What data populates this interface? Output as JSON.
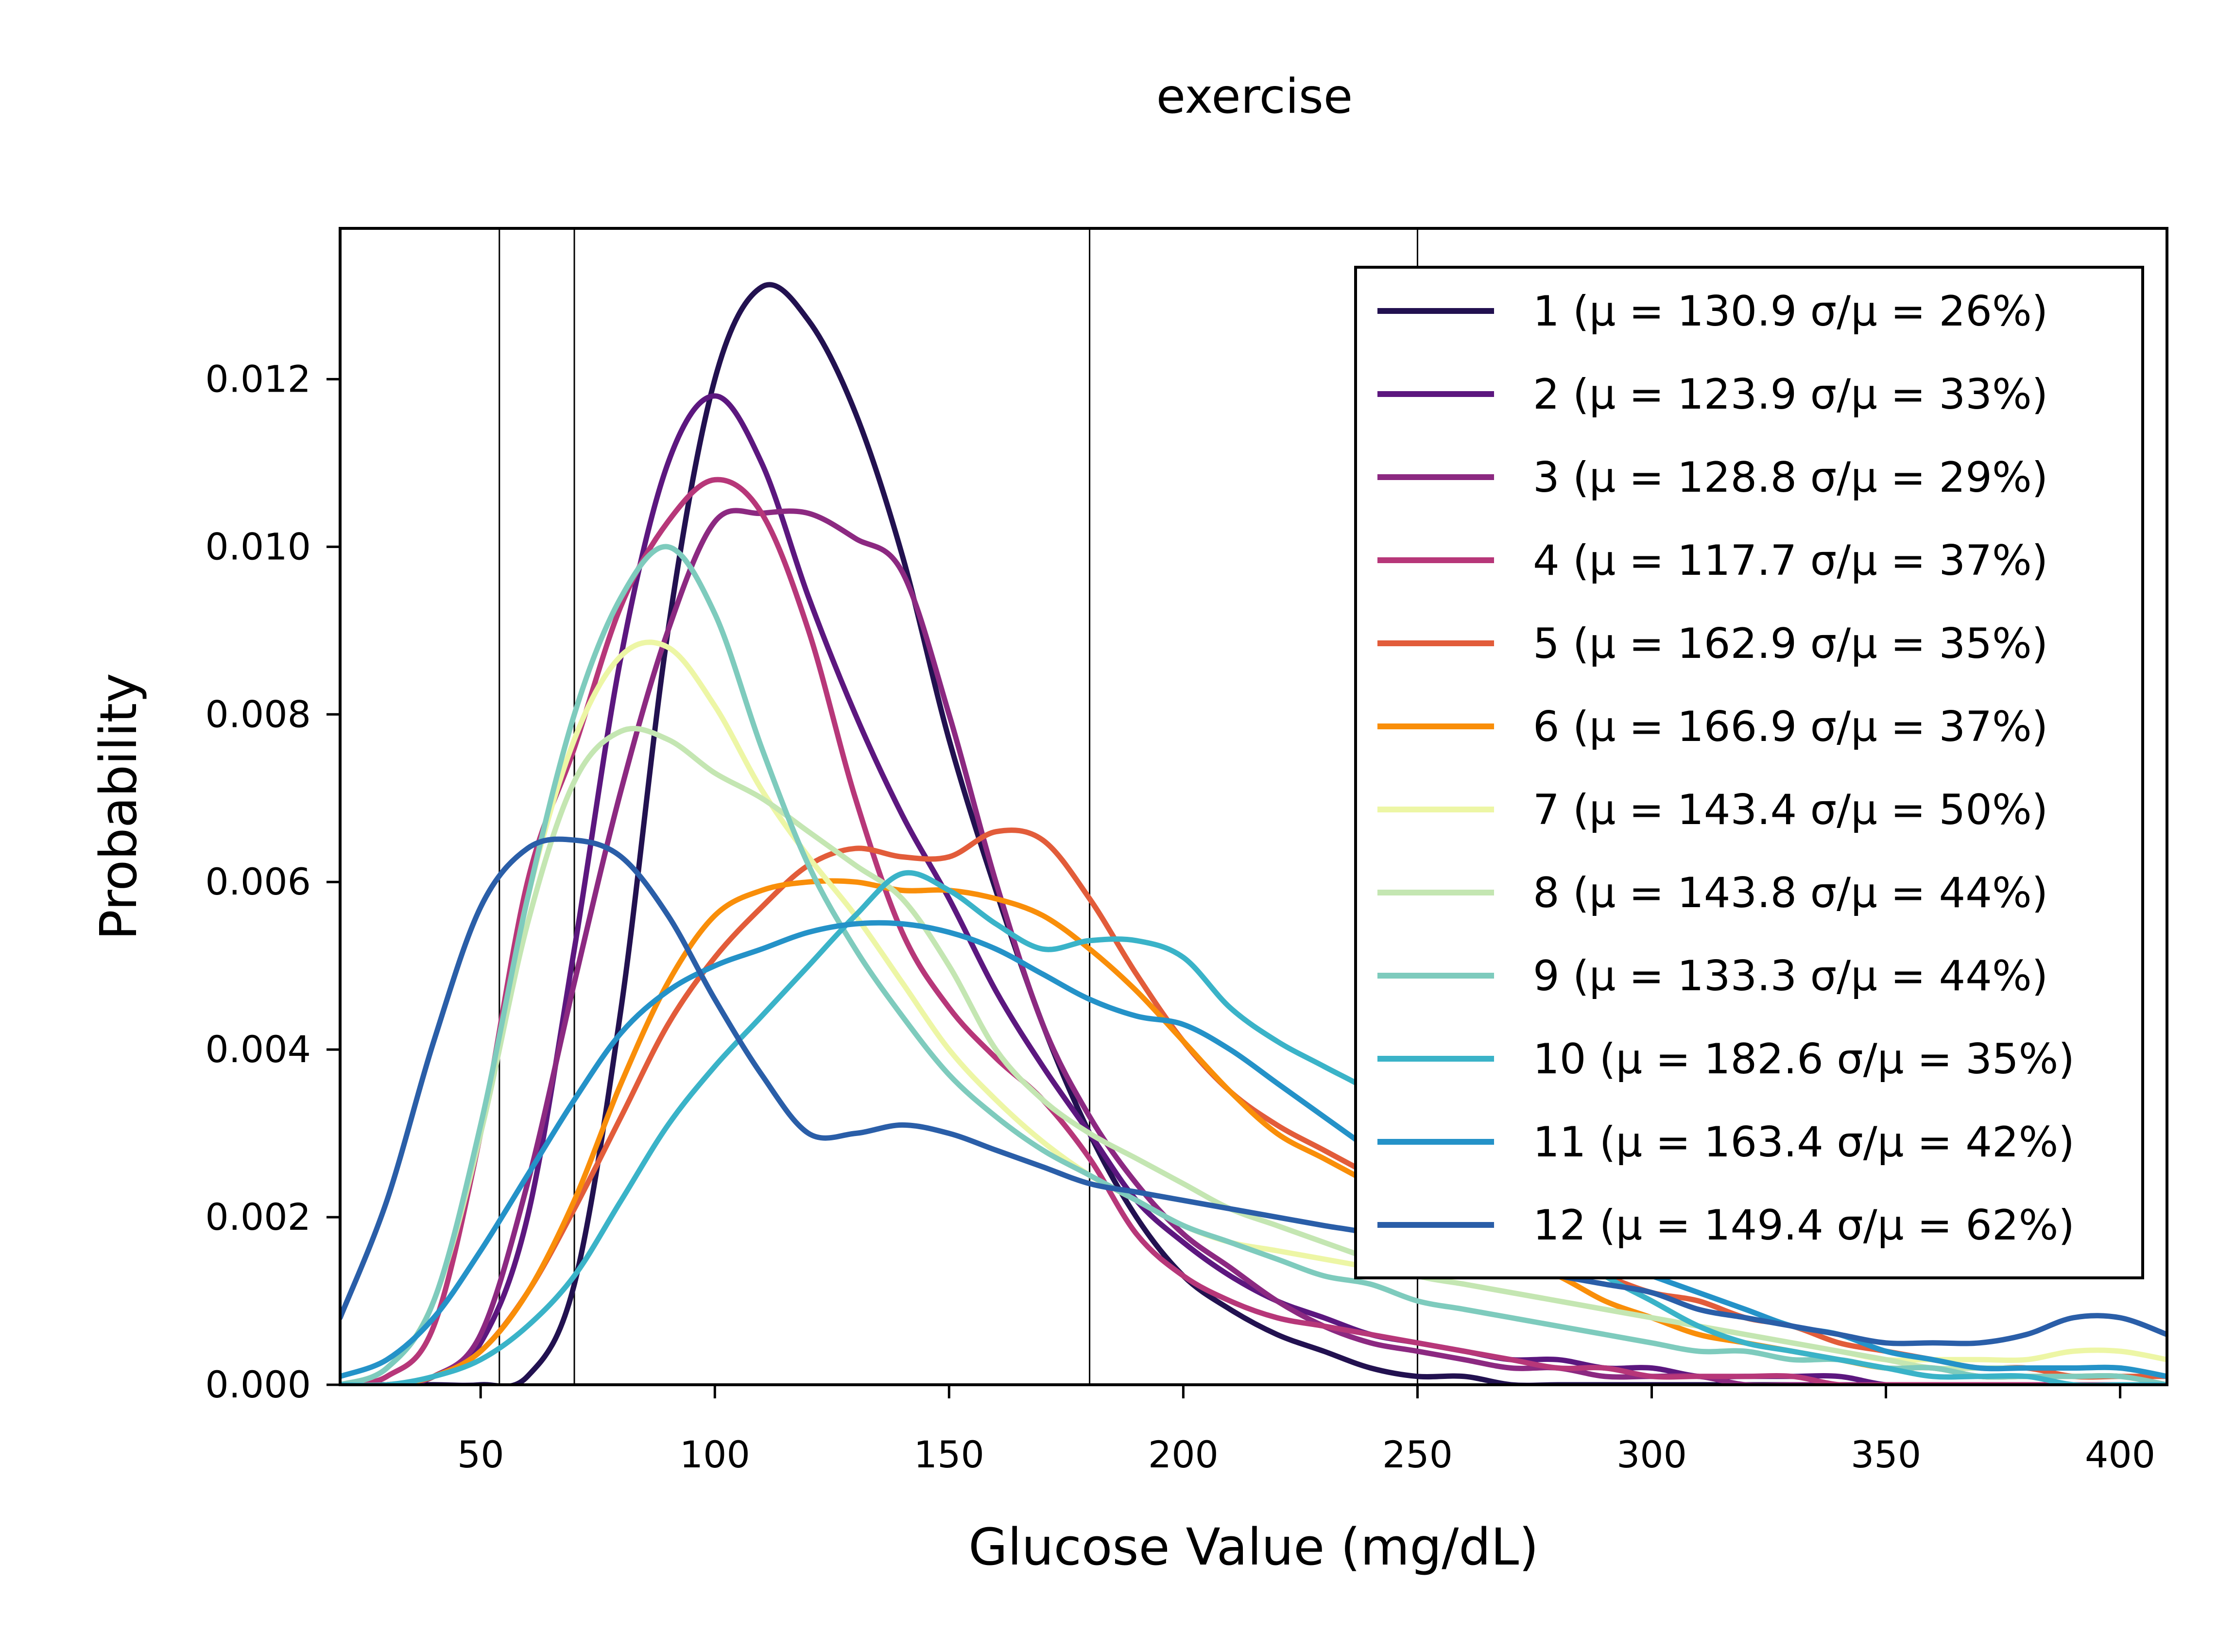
{
  "chart_data": {
    "type": "line",
    "title": "exercise",
    "xlabel": "Glucose Value (mg/dL)",
    "ylabel": "Probability",
    "xlim": [
      20,
      410
    ],
    "ylim": [
      0,
      0.0138
    ],
    "xticks": [
      50,
      100,
      150,
      200,
      250,
      300,
      350,
      400
    ],
    "xtick_labels": [
      "50",
      "100",
      "150",
      "200",
      "250",
      "300",
      "350",
      "400"
    ],
    "yticks": [
      0,
      0.002,
      0.004,
      0.006,
      0.008,
      0.01,
      0.012
    ],
    "ytick_labels": [
      "0.000",
      "0.002",
      "0.004",
      "0.006",
      "0.008",
      "0.010",
      "0.012"
    ],
    "reference_lines_x": [
      54,
      70,
      180,
      250
    ],
    "legend_position": "upper right",
    "x": [
      20,
      30,
      40,
      50,
      60,
      70,
      80,
      90,
      100,
      110,
      120,
      130,
      140,
      150,
      160,
      170,
      180,
      190,
      200,
      210,
      220,
      230,
      240,
      250,
      260,
      270,
      280,
      290,
      300,
      310,
      320,
      330,
      340,
      350,
      360,
      370,
      380,
      390,
      400,
      410
    ],
    "series": [
      {
        "name": "1",
        "label": "1 (μ = 130.9 σ/μ = 26%)",
        "color": "#221150",
        "values": [
          0,
          0,
          0,
          0,
          0.0001,
          0.0012,
          0.0045,
          0.009,
          0.012,
          0.0131,
          0.0127,
          0.0116,
          0.0099,
          0.0077,
          0.0059,
          0.0043,
          0.003,
          0.002,
          0.0013,
          0.0009,
          0.0006,
          0.0004,
          0.0002,
          0.0001,
          0.0001,
          0,
          0,
          0,
          0,
          0,
          0,
          0,
          0,
          0,
          0,
          0,
          0,
          0,
          0,
          0
        ]
      },
      {
        "name": "2",
        "label": "2 (μ = 123.9 σ/μ = 33%)",
        "color": "#5c177f",
        "values": [
          0,
          0,
          0.0001,
          0.0005,
          0.002,
          0.0052,
          0.0087,
          0.011,
          0.0118,
          0.011,
          0.0094,
          0.008,
          0.0068,
          0.0058,
          0.0047,
          0.0038,
          0.003,
          0.0022,
          0.0017,
          0.0013,
          0.001,
          0.0008,
          0.0006,
          0.0005,
          0.0004,
          0.0003,
          0.0003,
          0.0002,
          0.0002,
          0.0001,
          0.0001,
          0.0001,
          0.0001,
          0,
          0,
          0,
          0,
          0,
          0,
          0
        ]
      },
      {
        "name": "3",
        "label": "3 (μ = 128.8 σ/μ = 29%)",
        "color": "#8c2981",
        "values": [
          0,
          0,
          0.0001,
          0.0006,
          0.0024,
          0.0048,
          0.0071,
          0.009,
          0.0103,
          0.0104,
          0.0104,
          0.0101,
          0.0097,
          0.008,
          0.006,
          0.0043,
          0.0032,
          0.0024,
          0.0018,
          0.0014,
          0.001,
          0.0007,
          0.0005,
          0.0004,
          0.0003,
          0.0002,
          0.0002,
          0.0001,
          0.0001,
          0.0001,
          0,
          0,
          0,
          0,
          0,
          0,
          0,
          0,
          0,
          0
        ]
      },
      {
        "name": "4",
        "label": "4 (μ = 117.7 σ/μ = 37%)",
        "color": "#b73779",
        "values": [
          0,
          0.0001,
          0.0007,
          0.003,
          0.006,
          0.0076,
          0.0093,
          0.0103,
          0.0108,
          0.0104,
          0.009,
          0.007,
          0.0054,
          0.0045,
          0.0039,
          0.0034,
          0.0027,
          0.0018,
          0.0013,
          0.001,
          0.0008,
          0.0007,
          0.0006,
          0.0005,
          0.0004,
          0.0003,
          0.0002,
          0.0002,
          0.0001,
          0.0001,
          0.0001,
          0.0001,
          0,
          0,
          0,
          0,
          0,
          0,
          0,
          0
        ]
      },
      {
        "name": "5",
        "label": "5 (μ = 162.9 σ/μ = 35%)",
        "color": "#e25c3a",
        "values": [
          0,
          0,
          0.0001,
          0.0004,
          0.0011,
          0.0021,
          0.0032,
          0.0043,
          0.0051,
          0.0057,
          0.0062,
          0.0064,
          0.0063,
          0.0063,
          0.0066,
          0.0065,
          0.0058,
          0.0049,
          0.0041,
          0.0035,
          0.0031,
          0.0028,
          0.0025,
          0.0022,
          0.0019,
          0.0017,
          0.0015,
          0.0013,
          0.0011,
          0.001,
          0.0008,
          0.0007,
          0.0005,
          0.0004,
          0.0003,
          0.0002,
          0.0002,
          0.0001,
          0.0001,
          0.0001
        ]
      },
      {
        "name": "6",
        "label": "6 (μ = 166.9 σ/μ = 37%)",
        "color": "#f98e09",
        "values": [
          0,
          0,
          0.0001,
          0.0004,
          0.0011,
          0.0022,
          0.0036,
          0.0048,
          0.0056,
          0.0059,
          0.006,
          0.006,
          0.0059,
          0.0059,
          0.0058,
          0.0056,
          0.0052,
          0.0047,
          0.0041,
          0.0035,
          0.003,
          0.0027,
          0.0024,
          0.0021,
          0.0018,
          0.0015,
          0.0013,
          0.001,
          0.0008,
          0.0006,
          0.0005,
          0.0004,
          0.0003,
          0.0002,
          0.0002,
          0.0001,
          0.0001,
          0.0001,
          0.0001,
          0
        ]
      },
      {
        "name": "7",
        "label": "7 (μ = 143.4 σ/μ = 50%)",
        "color": "#edf6a5",
        "values": [
          0,
          0.0002,
          0.001,
          0.003,
          0.0058,
          0.0077,
          0.0087,
          0.0088,
          0.0081,
          0.0071,
          0.0063,
          0.0056,
          0.0048,
          0.004,
          0.0034,
          0.0029,
          0.0025,
          0.0022,
          0.0019,
          0.0017,
          0.0016,
          0.0015,
          0.0014,
          0.0013,
          0.0012,
          0.0011,
          0.001,
          0.0009,
          0.0008,
          0.0007,
          0.0006,
          0.0005,
          0.0004,
          0.0003,
          0.0003,
          0.0003,
          0.0003,
          0.0004,
          0.0004,
          0.0003
        ]
      },
      {
        "name": "8",
        "label": "8 (μ = 143.8 σ/μ = 44%)",
        "color": "#c4e6b2",
        "values": [
          0,
          0.0002,
          0.001,
          0.003,
          0.0055,
          0.0072,
          0.0078,
          0.0077,
          0.0073,
          0.007,
          0.0066,
          0.0062,
          0.0058,
          0.005,
          0.004,
          0.0034,
          0.003,
          0.0027,
          0.0024,
          0.0021,
          0.0019,
          0.0017,
          0.0015,
          0.0013,
          0.0012,
          0.0011,
          0.001,
          0.0009,
          0.0008,
          0.0007,
          0.0006,
          0.0005,
          0.0004,
          0.0003,
          0.0002,
          0.0002,
          0.0002,
          0.0002,
          0.0002,
          0.0001
        ]
      },
      {
        "name": "9",
        "label": "9 (μ = 133.3 σ/μ = 44%)",
        "color": "#7ecbbd",
        "values": [
          0,
          0.0002,
          0.001,
          0.0031,
          0.0058,
          0.008,
          0.0094,
          0.01,
          0.0092,
          0.0076,
          0.0062,
          0.0052,
          0.0044,
          0.0037,
          0.0032,
          0.0028,
          0.0025,
          0.0022,
          0.0019,
          0.0017,
          0.0015,
          0.0013,
          0.0012,
          0.001,
          0.0009,
          0.0008,
          0.0007,
          0.0006,
          0.0005,
          0.0004,
          0.0004,
          0.0003,
          0.0003,
          0.0002,
          0.0002,
          0.0001,
          0.0001,
          0.0001,
          0.0001,
          0
        ]
      },
      {
        "name": "10",
        "label": "10 (μ = 182.6 σ/μ = 35%)",
        "color": "#3ab3c8",
        "values": [
          0,
          0,
          0.0001,
          0.0003,
          0.0007,
          0.0013,
          0.0022,
          0.0031,
          0.0038,
          0.0044,
          0.005,
          0.0056,
          0.0061,
          0.0059,
          0.0055,
          0.0052,
          0.0053,
          0.0053,
          0.0051,
          0.0045,
          0.0041,
          0.0038,
          0.0035,
          0.0031,
          0.0026,
          0.0021,
          0.0017,
          0.0013,
          0.001,
          0.0007,
          0.0005,
          0.0004,
          0.0003,
          0.0002,
          0.0001,
          0.0001,
          0.0001,
          0,
          0,
          0
        ]
      },
      {
        "name": "11",
        "label": "11 (μ = 163.4 σ/μ = 42%)",
        "color": "#2492c8",
        "values": [
          0.0001,
          0.0003,
          0.0008,
          0.0016,
          0.0025,
          0.0034,
          0.0042,
          0.0047,
          0.005,
          0.0052,
          0.0054,
          0.0055,
          0.0055,
          0.0054,
          0.0052,
          0.0049,
          0.0046,
          0.0044,
          0.0043,
          0.004,
          0.0036,
          0.0032,
          0.0028,
          0.0024,
          0.0021,
          0.0019,
          0.0017,
          0.0015,
          0.0013,
          0.0011,
          0.0009,
          0.0007,
          0.0006,
          0.0004,
          0.0003,
          0.0002,
          0.0002,
          0.0002,
          0.0002,
          0.0001
        ]
      },
      {
        "name": "12",
        "label": "12 (μ = 149.4 σ/μ = 62%)",
        "color": "#2a5ea8",
        "values": [
          0.0008,
          0.0022,
          0.0041,
          0.0057,
          0.0064,
          0.0065,
          0.0063,
          0.0056,
          0.0046,
          0.0037,
          0.003,
          0.003,
          0.0031,
          0.003,
          0.0028,
          0.0026,
          0.0024,
          0.0023,
          0.0022,
          0.0021,
          0.002,
          0.0019,
          0.0018,
          0.0016,
          0.0015,
          0.0014,
          0.0013,
          0.0012,
          0.0011,
          0.0009,
          0.0008,
          0.0007,
          0.0006,
          0.0005,
          0.0005,
          0.0005,
          0.0006,
          0.0008,
          0.0008,
          0.0006
        ]
      }
    ]
  }
}
